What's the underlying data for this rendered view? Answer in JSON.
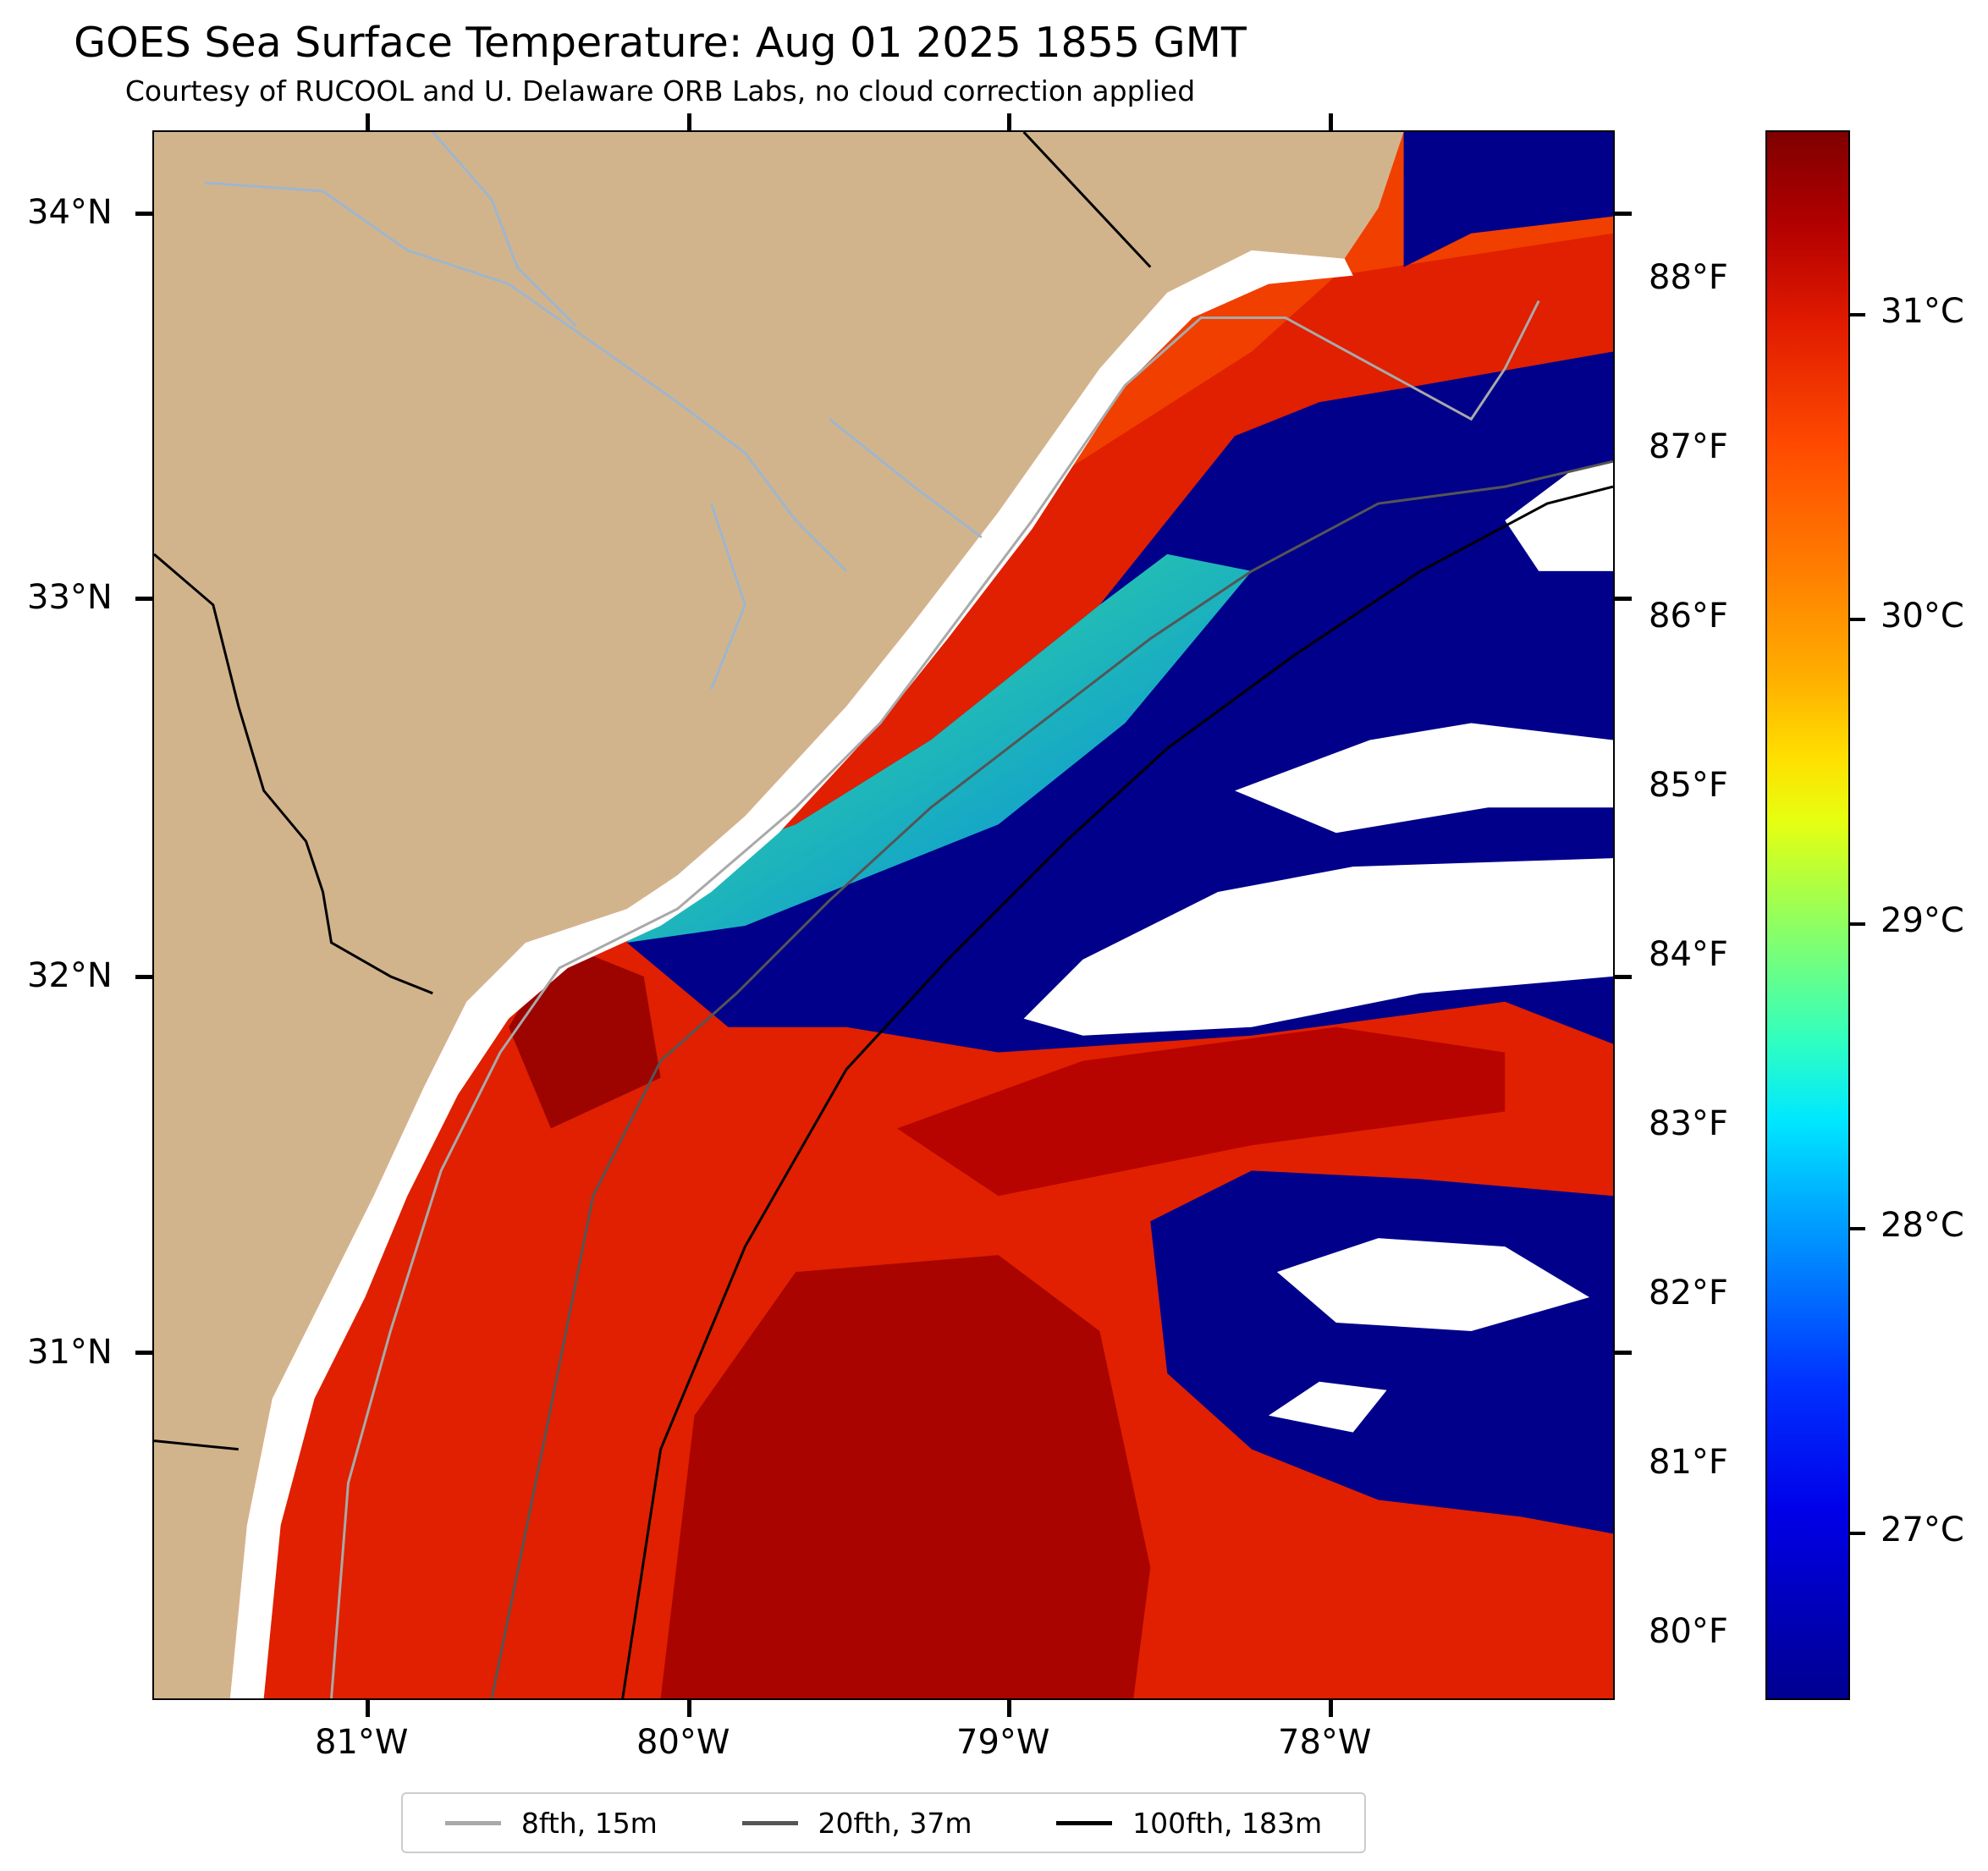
{
  "title": "GOES Sea Surface Temperature: Aug 01 2025 1855 GMT",
  "subtitle": "Courtesy of RUCOOL and U. Delaware ORB Labs, no cloud correction applied",
  "map": {
    "land_color": "#d2b48c",
    "cold_color": "#00008b",
    "warm_color": "#d91a00",
    "hot_color": "#a00000",
    "river_color": "#9fb6cd",
    "latitude_labels": [
      "34°N",
      "33°N",
      "32°N",
      "31°N"
    ],
    "longitude_labels": [
      "81°W",
      "80°W",
      "79°W",
      "78°W"
    ],
    "fahrenheit_labels": [
      "88°F",
      "87°F",
      "86°F",
      "85°F",
      "84°F",
      "83°F",
      "82°F",
      "81°F",
      "80°F"
    ]
  },
  "colorbar": {
    "labels": [
      "31°C",
      "30°C",
      "29°C",
      "28°C",
      "27°C"
    ]
  },
  "legend": [
    {
      "label": "8fth, 15m",
      "color": "#a9a9a9"
    },
    {
      "label": "20fth, 37m",
      "color": "#555555"
    },
    {
      "label": "100fth, 183m",
      "color": "#000000"
    }
  ]
}
